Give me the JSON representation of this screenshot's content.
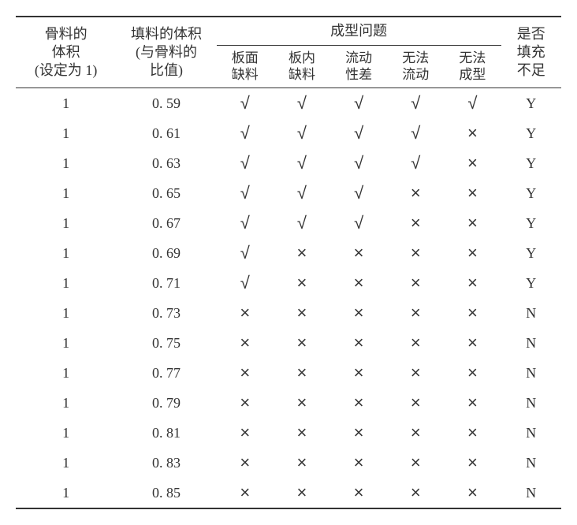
{
  "table": {
    "headers": {
      "aggregate_volume": "骨料的\n体积\n(设定为 1)",
      "filler_volume": "填料的体积\n(与骨料的\n比值)",
      "molding_issues": "成型问题",
      "issue1": "板面\n缺料",
      "issue2": "板内\n缺料",
      "issue3": "流动\n性差",
      "issue4": "无法\n流动",
      "issue5": "无法\n成型",
      "insufficient_fill": "是否\n填充\n不足"
    },
    "symbols": {
      "check": "√",
      "cross": "×"
    },
    "rows": [
      {
        "aggregate": "1",
        "filler": "0. 59",
        "issues": [
          "check",
          "check",
          "check",
          "check",
          "check"
        ],
        "result": "Y"
      },
      {
        "aggregate": "1",
        "filler": "0. 61",
        "issues": [
          "check",
          "check",
          "check",
          "check",
          "cross"
        ],
        "result": "Y"
      },
      {
        "aggregate": "1",
        "filler": "0. 63",
        "issues": [
          "check",
          "check",
          "check",
          "check",
          "cross"
        ],
        "result": "Y"
      },
      {
        "aggregate": "1",
        "filler": "0. 65",
        "issues": [
          "check",
          "check",
          "check",
          "cross",
          "cross"
        ],
        "result": "Y"
      },
      {
        "aggregate": "1",
        "filler": "0. 67",
        "issues": [
          "check",
          "check",
          "check",
          "cross",
          "cross"
        ],
        "result": "Y"
      },
      {
        "aggregate": "1",
        "filler": "0. 69",
        "issues": [
          "check",
          "cross",
          "cross",
          "cross",
          "cross"
        ],
        "result": "Y"
      },
      {
        "aggregate": "1",
        "filler": "0. 71",
        "issues": [
          "check",
          "cross",
          "cross",
          "cross",
          "cross"
        ],
        "result": "Y"
      },
      {
        "aggregate": "1",
        "filler": "0. 73",
        "issues": [
          "cross",
          "cross",
          "cross",
          "cross",
          "cross"
        ],
        "result": "N"
      },
      {
        "aggregate": "1",
        "filler": "0. 75",
        "issues": [
          "cross",
          "cross",
          "cross",
          "cross",
          "cross"
        ],
        "result": "N"
      },
      {
        "aggregate": "1",
        "filler": "0. 77",
        "issues": [
          "cross",
          "cross",
          "cross",
          "cross",
          "cross"
        ],
        "result": "N"
      },
      {
        "aggregate": "1",
        "filler": "0. 79",
        "issues": [
          "cross",
          "cross",
          "cross",
          "cross",
          "cross"
        ],
        "result": "N"
      },
      {
        "aggregate": "1",
        "filler": "0. 81",
        "issues": [
          "cross",
          "cross",
          "cross",
          "cross",
          "cross"
        ],
        "result": "N"
      },
      {
        "aggregate": "1",
        "filler": "0. 83",
        "issues": [
          "cross",
          "cross",
          "cross",
          "cross",
          "cross"
        ],
        "result": "N"
      },
      {
        "aggregate": "1",
        "filler": "0. 85",
        "issues": [
          "cross",
          "cross",
          "cross",
          "cross",
          "cross"
        ],
        "result": "N"
      }
    ],
    "styling": {
      "background_color": "#ffffff",
      "text_color": "#333333",
      "border_color": "#333333",
      "header_fontsize": 18,
      "cell_fontsize": 18,
      "symbol_fontsize": 22,
      "top_border_width": 2,
      "bottom_border_width": 2,
      "mid_border_width": 1
    }
  }
}
